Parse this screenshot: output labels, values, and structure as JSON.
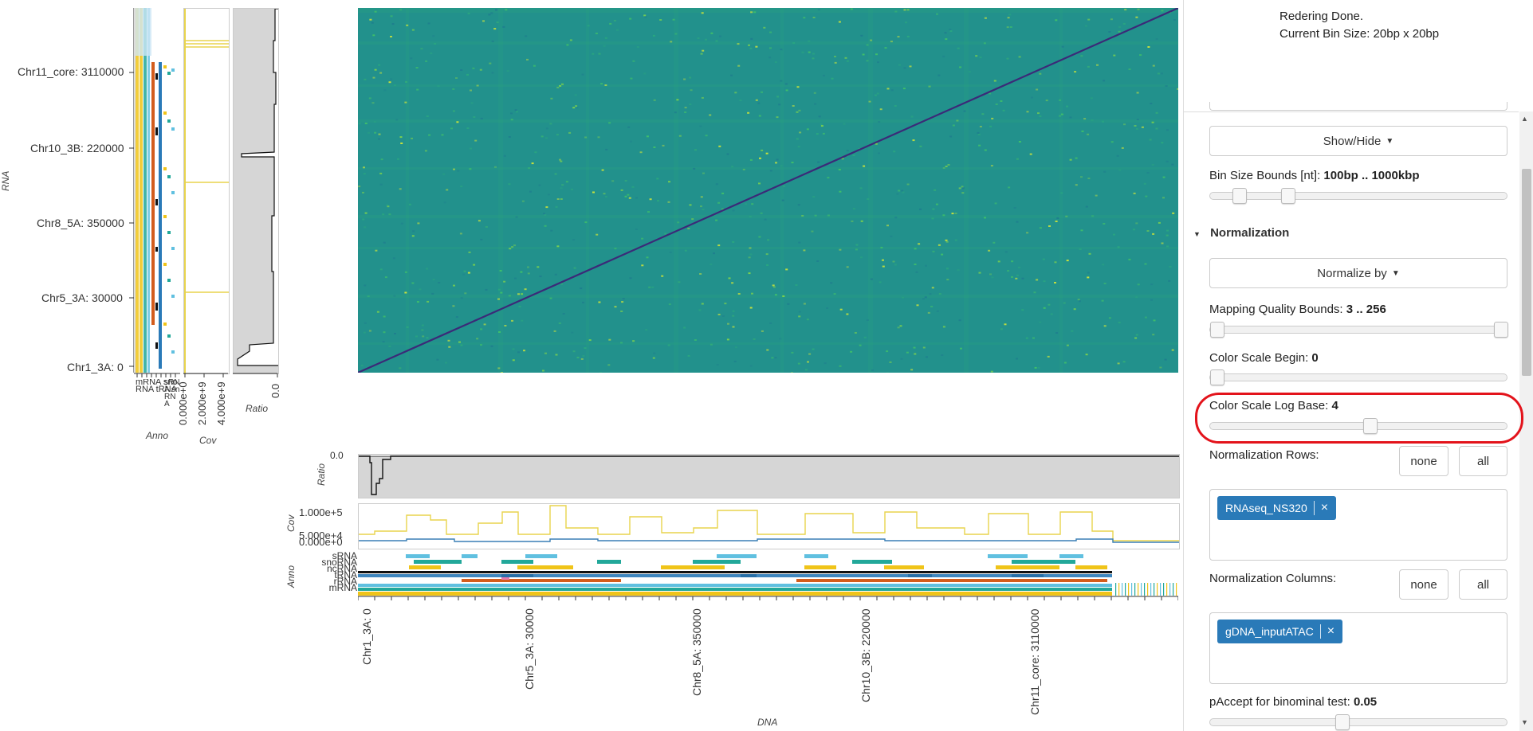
{
  "status": {
    "line1": "Redering Done.",
    "line2": "Current Bin Size: 20bp x 20bp"
  },
  "controls": {
    "show_hide_label": "Show/Hide",
    "bin_size_label": "Bin Size Bounds [nt]:",
    "bin_size_value": "100bp .. 1000kbp",
    "normalization_heading": "Normalization",
    "normalize_by_label": "Normalize by",
    "mapq_label": "Mapping Quality Bounds:",
    "mapq_value": "3 .. 256",
    "color_begin_label": "Color Scale Begin:",
    "color_begin_value": "0",
    "color_log_label": "Color Scale Log Base:",
    "color_log_value": "4",
    "norm_rows_label": "Normalization Rows:",
    "norm_cols_label": "Normalization Columns:",
    "none_label": "none",
    "all_label": "all",
    "row_tag": "RNAseq_NS320",
    "col_tag": "gDNA_inputATAC",
    "paccept_label": "pAccept for binominal test:",
    "paccept_value": "0.05",
    "remove_symbol": "×"
  },
  "sliders": {
    "bin_size": [
      0.08,
      0.25
    ],
    "mapq": [
      0.0,
      1.0
    ],
    "color_begin": 0.0,
    "color_log": 0.54,
    "paccept": 0.44
  },
  "left_axis": {
    "label": "RNA",
    "ticks": [
      "Chr11_core: 3110000",
      "Chr10_3B: 220000",
      "Chr8_5A: 350000",
      "Chr5_3A: 30000",
      "Chr1_3A: 0"
    ]
  },
  "bottom_axis": {
    "label": "DNA",
    "ticks": [
      "Chr1_3A: 0",
      "Chr5_3A: 30000",
      "Chr8_5A: 350000",
      "Chr10_3B: 220000",
      "Chr11_core: 3110000"
    ]
  },
  "side_panels": {
    "anno_label": "Anno",
    "cov_label": "Cov",
    "ratio_label": "Ratio",
    "cov_ticks": [
      "0.000e+0",
      "2.000e+9",
      "4.000e+9"
    ],
    "ratio_ticks": [
      "0.0"
    ],
    "anno_tick_text": "mRNA snoRNA tRNA",
    "anno_ticks_right": [
      "sRNA snRNA"
    ]
  },
  "bottom_panels": {
    "ratio_label": "Ratio",
    "ratio_tick": "0.0",
    "cov_label": "Cov",
    "cov_ticks": [
      "1.000e+5",
      "5.000e+4",
      "0.000e+0"
    ],
    "anno_label": "Anno",
    "anno_rows": [
      "sRNA",
      "snoRNA",
      "ncRNA",
      "tRNA",
      "rRNA",
      "mRNA"
    ]
  },
  "colors": {
    "heatmap_bg": "#22918c",
    "diagonal": "#3b2a78",
    "coverage_line": "#e8d44d",
    "coverage_blue": "#3a7fb5",
    "highlight": "#e3131b"
  }
}
